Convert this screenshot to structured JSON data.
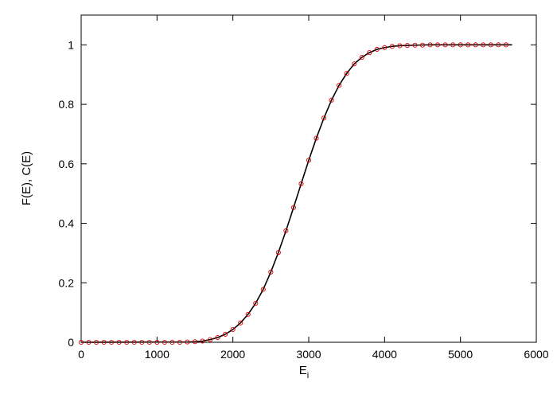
{
  "chart_data": {
    "type": "scatter",
    "xlabel": "E",
    "xlabel_subscript": "i",
    "ylabel": "F(E), C(E)",
    "xlim": [
      0,
      6000
    ],
    "ylim": [
      0,
      1.1
    ],
    "xticks": [
      0,
      1000,
      2000,
      3000,
      4000,
      5000,
      6000
    ],
    "xtick_labels": [
      "0",
      "1000",
      "2000",
      "3000",
      "4000",
      "5000",
      "6000"
    ],
    "yticks": [
      0,
      0.2,
      0.4,
      0.6,
      0.8,
      1
    ],
    "ytick_labels": [
      "0",
      "0.2",
      "0.4",
      "0.6",
      "0.8",
      "1"
    ],
    "grid": false,
    "series": [
      {
        "kind": "line",
        "color": "#000000",
        "x": [
          0,
          1400,
          1500,
          1600,
          1700,
          1800,
          1900,
          2000,
          2100,
          2200,
          2300,
          2400,
          2500,
          2600,
          2700,
          2800,
          2900,
          3000,
          3100,
          3200,
          3300,
          3400,
          3500,
          3600,
          3700,
          3800,
          3900,
          4000,
          4100,
          4200,
          4400,
          4600,
          5000,
          5680
        ],
        "y": [
          0,
          0.001,
          0.002,
          0.004,
          0.009,
          0.016,
          0.027,
          0.043,
          0.065,
          0.094,
          0.131,
          0.178,
          0.236,
          0.302,
          0.375,
          0.453,
          0.533,
          0.612,
          0.686,
          0.754,
          0.814,
          0.864,
          0.904,
          0.936,
          0.958,
          0.974,
          0.985,
          0.991,
          0.995,
          0.997,
          0.999,
          1.0,
          1.0,
          1.0
        ]
      },
      {
        "kind": "markers",
        "marker": "circle",
        "color": "#dd0000",
        "x": [
          0,
          100,
          200,
          300,
          400,
          500,
          600,
          700,
          800,
          900,
          1000,
          1100,
          1200,
          1300,
          1400,
          1500,
          1600,
          1700,
          1800,
          1900,
          2000,
          2100,
          2200,
          2300,
          2400,
          2500,
          2600,
          2700,
          2800,
          2900,
          3000,
          3100,
          3200,
          3300,
          3400,
          3500,
          3600,
          3700,
          3800,
          3900,
          4000,
          4100,
          4200,
          4300,
          4400,
          4500,
          4600,
          4700,
          4800,
          4900,
          5000,
          5100,
          5200,
          5300,
          5400,
          5500,
          5600
        ],
        "y": [
          0,
          0,
          0,
          0,
          0,
          0,
          0,
          0,
          0,
          0,
          0,
          0,
          0,
          0,
          0.001,
          0.002,
          0.004,
          0.009,
          0.016,
          0.027,
          0.043,
          0.065,
          0.094,
          0.131,
          0.178,
          0.236,
          0.302,
          0.375,
          0.453,
          0.533,
          0.612,
          0.686,
          0.754,
          0.814,
          0.864,
          0.904,
          0.936,
          0.958,
          0.974,
          0.985,
          0.991,
          0.995,
          0.997,
          0.998,
          0.999,
          0.999,
          1.0,
          1.0,
          1.0,
          1.0,
          1.0,
          1.0,
          1.0,
          1.0,
          1.0,
          1.0,
          1.0
        ]
      }
    ]
  }
}
